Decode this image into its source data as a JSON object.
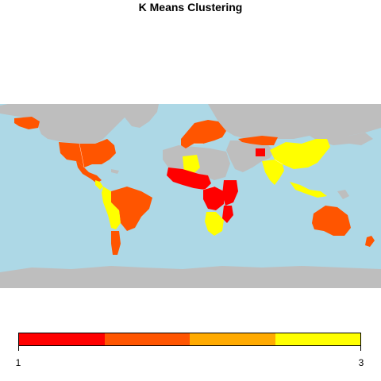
{
  "title": "K Means Clustering",
  "colors": {
    "ocean": "#add8e6",
    "no_data": "#bebebe",
    "cluster_1": "#ff0000",
    "cluster_1_5": "#ff5500",
    "cluster_2": "#ffaa00",
    "cluster_3": "#ffff00"
  },
  "legend": {
    "segment_colors": [
      "#ff0000",
      "#ff5500",
      "#ffaa00",
      "#ffff00"
    ],
    "min_label": "1",
    "max_label": "3"
  },
  "regions": [
    {
      "name": "usa",
      "cluster": 2
    },
    {
      "name": "alaska",
      "cluster": 2
    },
    {
      "name": "mexico",
      "cluster": 2
    },
    {
      "name": "brazil",
      "cluster": 2
    },
    {
      "name": "andes",
      "cluster": 3
    },
    {
      "name": "argentina",
      "cluster": 2
    },
    {
      "name": "europe",
      "cluster": 2
    },
    {
      "name": "russia",
      "cluster": 2
    },
    {
      "name": "china",
      "cluster": 3
    },
    {
      "name": "india",
      "cluster": 3
    },
    {
      "name": "southeast-asia",
      "cluster": 3
    },
    {
      "name": "australia",
      "cluster": 2
    },
    {
      "name": "new-zealand",
      "cluster": 2
    },
    {
      "name": "west-africa",
      "cluster": 1
    },
    {
      "name": "east-africa",
      "cluster": 1
    },
    {
      "name": "southern-africa",
      "cluster": 3
    }
  ]
}
